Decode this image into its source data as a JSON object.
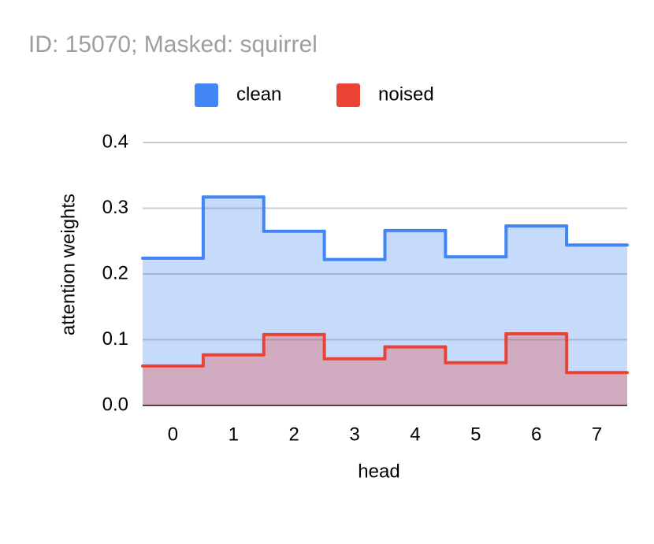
{
  "chart_data": {
    "type": "area",
    "step": true,
    "title": "ID: 15070; Masked: squirrel",
    "x_label": "head",
    "y_label": "attention weights",
    "categories": [
      "0",
      "1",
      "2",
      "3",
      "4",
      "5",
      "6",
      "7"
    ],
    "series": [
      {
        "name": "clean",
        "color": "#4285f4",
        "values": [
          0.224,
          0.317,
          0.265,
          0.222,
          0.266,
          0.226,
          0.273,
          0.244
        ]
      },
      {
        "name": "noised",
        "color": "#ea4335",
        "values": [
          0.06,
          0.077,
          0.108,
          0.071,
          0.089,
          0.065,
          0.109,
          0.05
        ]
      }
    ],
    "ylim": [
      0,
      0.4
    ],
    "yticks": [
      {
        "value": 0,
        "label": "0.0"
      },
      0.1,
      0.2,
      0.3,
      0.4
    ],
    "grid": true,
    "legend": "top"
  }
}
